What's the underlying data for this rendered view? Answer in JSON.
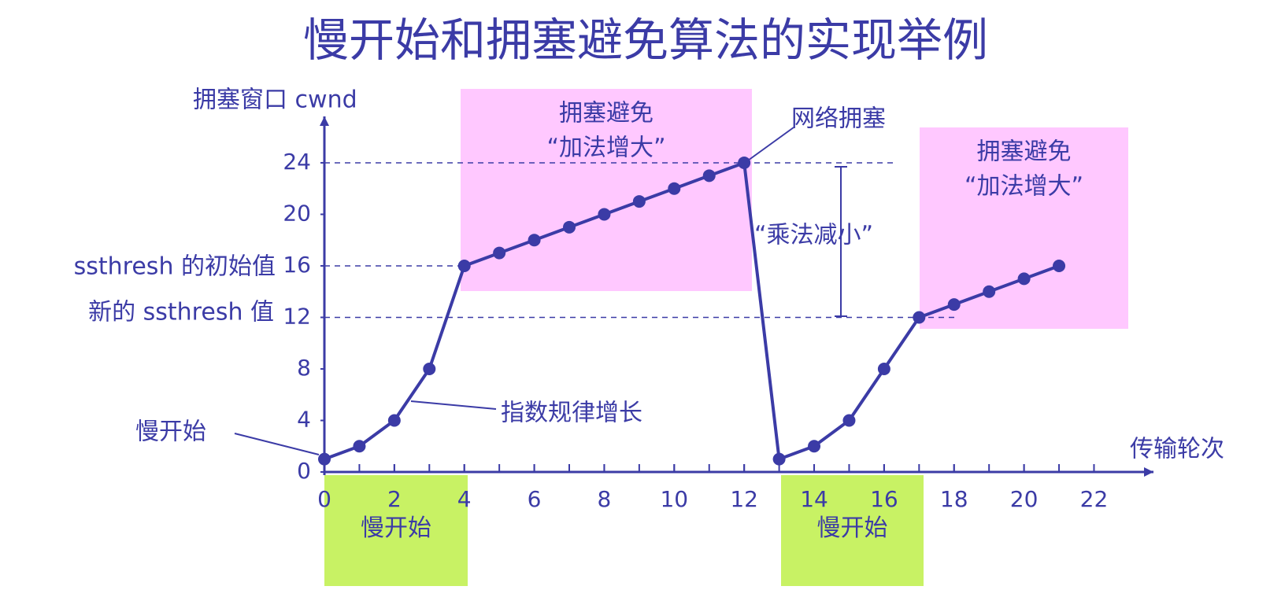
{
  "chart_data": {
    "type": "line",
    "title": "慢开始和拥塞避免算法的实现举例",
    "y_label": "拥塞窗口 cwnd",
    "x_label": "传输轮次",
    "x": [
      0,
      1,
      2,
      3,
      4,
      5,
      6,
      7,
      8,
      9,
      10,
      11,
      12,
      13,
      14,
      15,
      16,
      17,
      18,
      19,
      20,
      21
    ],
    "values": [
      1,
      2,
      4,
      8,
      16,
      17,
      18,
      19,
      20,
      21,
      22,
      23,
      24,
      1,
      2,
      4,
      8,
      12,
      13,
      14,
      15,
      16
    ],
    "color": "#3b3ba6",
    "xlim": [
      0,
      23.7
    ],
    "ylim": [
      0,
      27.6
    ],
    "xticks": [
      0,
      2,
      4,
      6,
      8,
      10,
      12,
      14,
      16,
      18,
      20,
      22
    ],
    "yticks": [
      0,
      4,
      8,
      12,
      16,
      20,
      24
    ],
    "reference_lines": [
      24,
      16,
      12
    ],
    "annotations": {
      "ssthresh_initial": "ssthresh 的初始值",
      "ssthresh_new": "新的 ssthresh 值",
      "slow_start": "慢开始",
      "exponential": "指数规律增长",
      "congestion": "网络拥塞",
      "multiplicative": "“乘法减小”"
    },
    "regions": [
      {
        "lines": [
          "拥塞避免",
          "“加法增大”"
        ],
        "color": "#ffc8ff"
      },
      {
        "lines": [
          "拥塞避免",
          "“加法增大”"
        ],
        "color": "#ffc8ff"
      },
      {
        "lines": [
          "慢开始"
        ],
        "color": "#c8f264"
      },
      {
        "lines": [
          "慢开始"
        ],
        "color": "#c8f264"
      }
    ]
  }
}
